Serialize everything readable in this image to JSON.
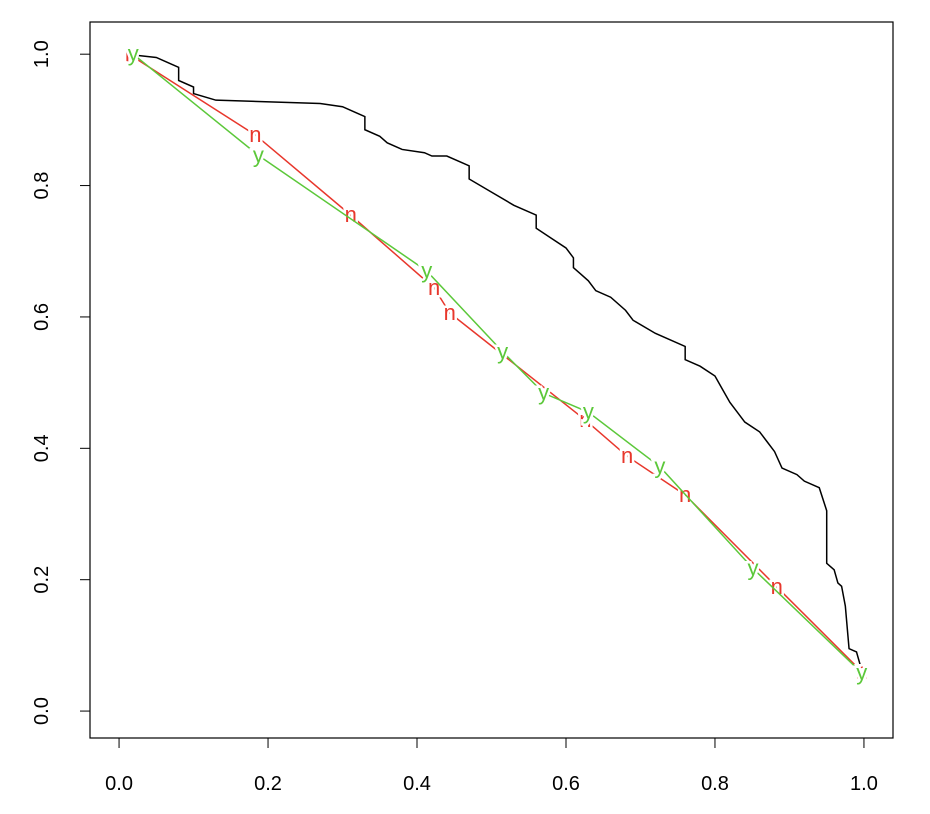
{
  "chart_data": {
    "type": "line",
    "xlim": [
      -0.039,
      1.039
    ],
    "ylim": [
      -0.041,
      1.049
    ],
    "xticks": [
      {
        "value": 0,
        "label": "0.0"
      },
      0.2,
      0.4,
      0.6,
      0.8,
      {
        "value": 1,
        "label": "1.0"
      }
    ],
    "yticks": [
      {
        "value": 0,
        "label": "0.0"
      },
      0.2,
      0.4,
      0.6,
      0.8,
      {
        "value": 1,
        "label": "1.0"
      }
    ],
    "series": [
      {
        "color": "#000000",
        "x": [
          0.01,
          0.05,
          0.07,
          0.08,
          0.08,
          0.1,
          0.1,
          0.13,
          0.27,
          0.3,
          0.32,
          0.33,
          0.33,
          0.35,
          0.36,
          0.38,
          0.41,
          0.42,
          0.44,
          0.46,
          0.47,
          0.47,
          0.5,
          0.53,
          0.56,
          0.56,
          0.58,
          0.6,
          0.61,
          0.61,
          0.62,
          0.63,
          0.64,
          0.66,
          0.68,
          0.69,
          0.72,
          0.76,
          0.76,
          0.78,
          0.8,
          0.81,
          0.82,
          0.83,
          0.84,
          0.86,
          0.87,
          0.88,
          0.89,
          0.91,
          0.92,
          0.94,
          0.95,
          0.95,
          0.96,
          0.965,
          0.97,
          0.975,
          0.98,
          0.99,
          0.995,
          1.0
        ],
        "values": [
          1.0,
          0.995,
          0.985,
          0.98,
          0.96,
          0.95,
          0.94,
          0.93,
          0.925,
          0.92,
          0.91,
          0.905,
          0.885,
          0.875,
          0.865,
          0.855,
          0.85,
          0.845,
          0.845,
          0.835,
          0.83,
          0.81,
          0.79,
          0.77,
          0.755,
          0.735,
          0.72,
          0.705,
          0.69,
          0.675,
          0.665,
          0.655,
          0.64,
          0.63,
          0.61,
          0.595,
          0.575,
          0.555,
          0.535,
          0.525,
          0.51,
          0.49,
          0.47,
          0.455,
          0.44,
          0.425,
          0.41,
          0.395,
          0.37,
          0.36,
          0.35,
          0.34,
          0.305,
          0.225,
          0.215,
          0.195,
          0.19,
          0.16,
          0.095,
          0.09,
          0.07,
          0.06
        ]
      },
      {
        "color": "#e8372c",
        "point_label": "n",
        "x": [
          0.016,
          0.183,
          0.311,
          0.423,
          0.444,
          0.626,
          0.682,
          0.76,
          0.883,
          0.997
        ],
        "values": [
          0.998,
          0.877,
          0.755,
          0.644,
          0.606,
          0.443,
          0.388,
          0.329,
          0.189,
          0.06
        ]
      },
      {
        "color": "#5cc83a",
        "point_label": "y",
        "x": [
          0.019,
          0.187,
          0.413,
          0.515,
          0.57,
          0.63,
          0.726,
          0.851,
          0.997
        ],
        "values": [
          1.0,
          0.846,
          0.67,
          0.547,
          0.484,
          0.455,
          0.372,
          0.217,
          0.058
        ]
      }
    ]
  }
}
